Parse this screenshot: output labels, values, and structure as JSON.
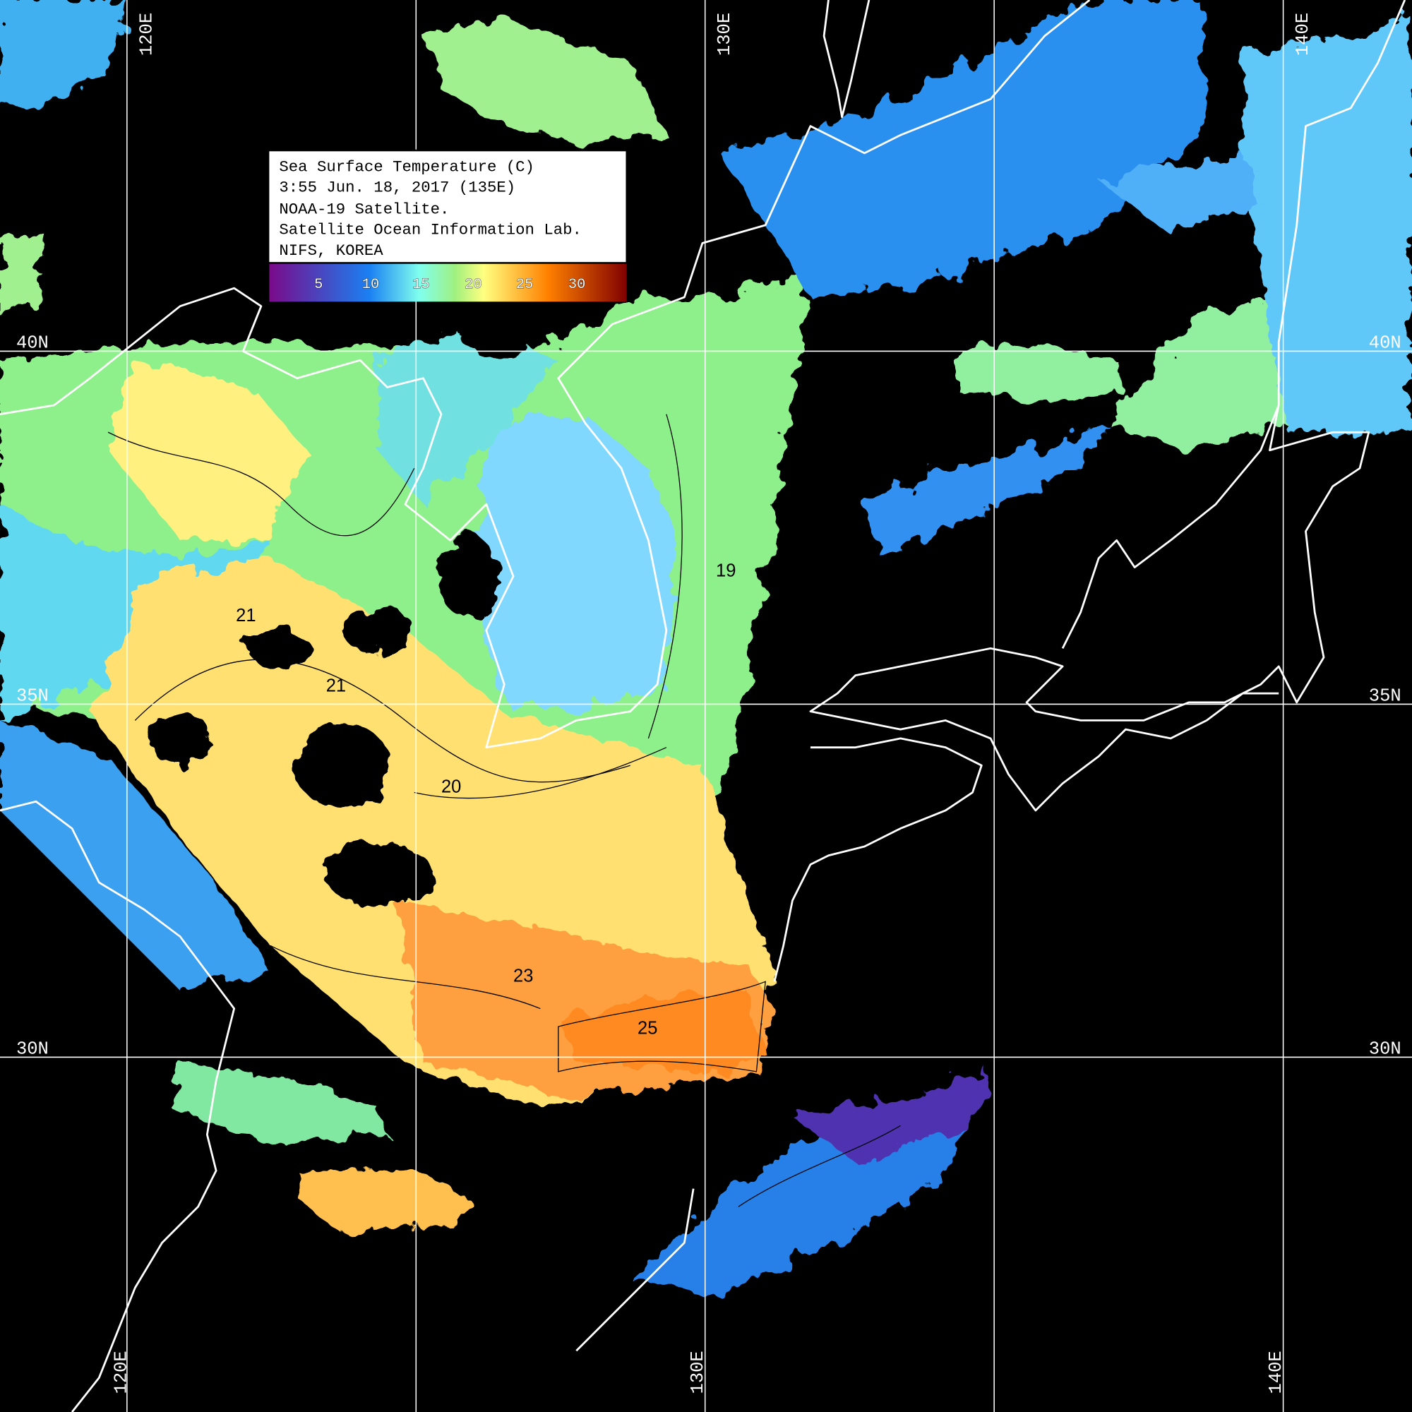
{
  "legend": {
    "title": "Sea Surface Temperature (C)",
    "datetime": "3:55 Jun. 18, 2017 (135E)",
    "satellite": "NOAA-19 Satellite.",
    "lab": "Satellite Ocean Information Lab.",
    "org": "NIFS, KOREA",
    "colorbar_ticks": [
      "5",
      "10",
      "15",
      "20",
      "25",
      "30"
    ],
    "colorbar_colors": [
      "#7a0a8a",
      "#1a80f2",
      "#80ffee",
      "#a0f080",
      "#ffff80",
      "#ff8000",
      "#800000"
    ]
  },
  "grid": {
    "lon_top": [
      "120E",
      "130E",
      "140E"
    ],
    "lon_bottom": [
      "120E",
      "130E",
      "140E"
    ],
    "lat_right": [
      "40N",
      "35N",
      "30N"
    ],
    "lat_left": [
      "40N",
      "35N",
      "30N"
    ]
  },
  "contour_labels": [
    "25",
    "20",
    "21",
    "23",
    "21",
    "19"
  ],
  "colors": {
    "background": "#000000",
    "coastline": "#ffffff",
    "grid": "#ffffff"
  }
}
